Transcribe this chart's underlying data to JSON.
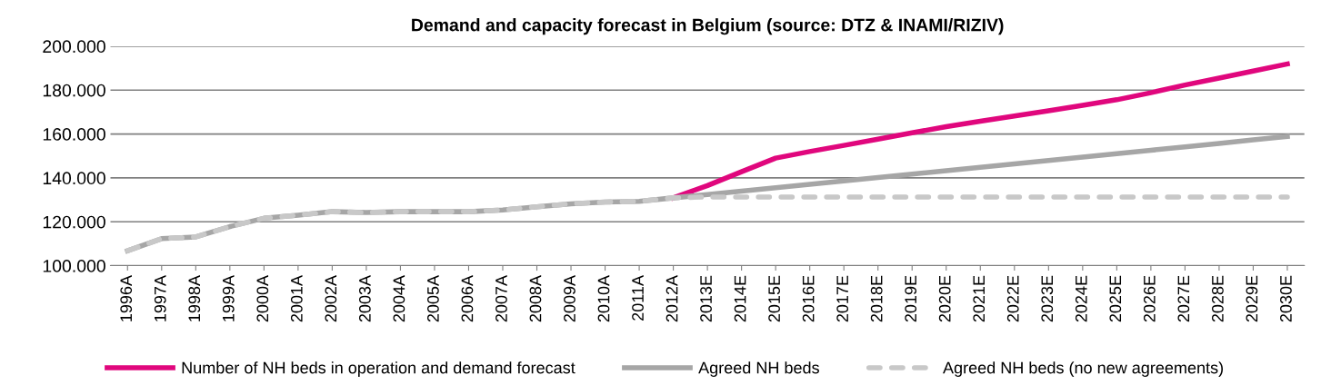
{
  "chart_data": {
    "type": "line",
    "title": "Demand and capacity forecast in Belgium (source: DTZ & INAMI/RIZIV)",
    "categories": [
      "1996A",
      "1997A",
      "1998A",
      "1999A",
      "2000A",
      "2001A",
      "2002A",
      "2003A",
      "2004A",
      "2005A",
      "2006A",
      "2007A",
      "2008A",
      "2009A",
      "2010A",
      "2011A",
      "2012A",
      "2013E",
      "2014E",
      "2015E",
      "2016E",
      "2017E",
      "2018E",
      "2019E",
      "2020E",
      "2021E",
      "2022E",
      "2023E",
      "2024E",
      "2025E",
      "2026E",
      "2027E",
      "2028E",
      "2029E",
      "2030E"
    ],
    "series": [
      {
        "name": "Number of NH beds in operation and demand forecast",
        "color": "#e0077d",
        "line_style": "solid",
        "values": [
          null,
          null,
          null,
          null,
          null,
          null,
          null,
          null,
          null,
          null,
          null,
          null,
          null,
          null,
          null,
          null,
          130900,
          136500,
          142800,
          149000,
          152000,
          154800,
          157600,
          160500,
          163300,
          165800,
          168200,
          170600,
          173100,
          175600,
          178800,
          182300,
          185500,
          188700,
          191900
        ]
      },
      {
        "name": "Agreed NH beds",
        "color": "#a6a6a6",
        "line_style": "solid",
        "values": [
          106800,
          112300,
          113100,
          117800,
          121600,
          123000,
          124600,
          124200,
          124600,
          124600,
          124600,
          125400,
          126800,
          128200,
          129000,
          129300,
          130900,
          132400,
          134000,
          135500,
          137100,
          138600,
          140200,
          141700,
          143300,
          144800,
          146400,
          147900,
          149500,
          151000,
          152600,
          154100,
          155700,
          157300,
          158900
        ]
      },
      {
        "name": "Agreed NH beds (no new agreements)",
        "color": "#c8c8c8",
        "line_style": "dashed",
        "values": [
          106800,
          112300,
          113100,
          117800,
          121600,
          123000,
          124600,
          124200,
          124600,
          124600,
          124600,
          125400,
          126800,
          128200,
          129000,
          129300,
          130900,
          131300,
          131300,
          131300,
          131300,
          131300,
          131300,
          131300,
          131300,
          131300,
          131300,
          131300,
          131300,
          131300,
          131300,
          131300,
          131300,
          131300,
          131300
        ]
      }
    ],
    "ylim": [
      100000,
      200000
    ],
    "yticks": [
      {
        "value": 100000,
        "label": "100.000"
      },
      {
        "value": 120000,
        "label": "120.000"
      },
      {
        "value": 140000,
        "label": "140.000"
      },
      {
        "value": 160000,
        "label": "160.000"
      },
      {
        "value": 180000,
        "label": "180.000"
      },
      {
        "value": 200000,
        "label": "200.000"
      }
    ],
    "grid": "y",
    "legend": "bottom",
    "marker": "none"
  }
}
